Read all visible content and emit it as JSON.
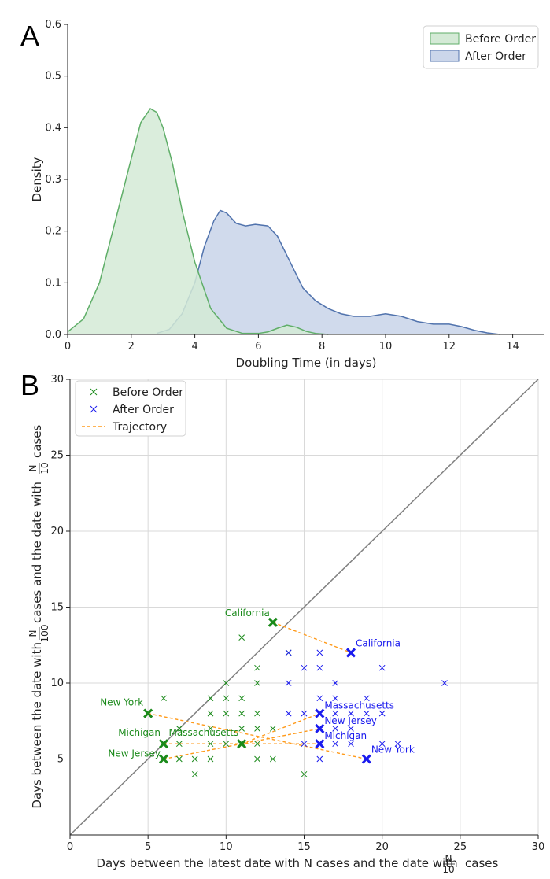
{
  "chart_data": [
    {
      "type": "area",
      "panel_label": "A",
      "title": "",
      "xlabel": "Doubling Time (in days)",
      "ylabel": "Density",
      "xlim": [
        0,
        15
      ],
      "ylim": [
        0,
        0.6
      ],
      "xticks": [
        "0",
        "2",
        "4",
        "6",
        "8",
        "10",
        "12",
        "14"
      ],
      "yticks": [
        "0.0",
        "0.1",
        "0.2",
        "0.3",
        "0.4",
        "0.5",
        "0.6"
      ],
      "legend": {
        "placement": "top-right",
        "entries": [
          "Before Order",
          "After Order"
        ]
      },
      "colors": {
        "before_fill": "#d4ead6",
        "before_line": "#5fae68",
        "after_fill": "#cbd6ea",
        "after_line": "#5173ad"
      },
      "series": [
        {
          "name": "Before Order",
          "x": [
            0,
            0.5,
            1,
            1.5,
            2,
            2.3,
            2.6,
            2.8,
            3.0,
            3.3,
            3.6,
            4.0,
            4.5,
            5.0,
            5.5,
            6.0,
            6.3,
            6.6,
            6.9,
            7.2,
            7.5,
            7.8,
            8.2
          ],
          "y": [
            0.005,
            0.03,
            0.1,
            0.22,
            0.34,
            0.41,
            0.437,
            0.43,
            0.4,
            0.33,
            0.24,
            0.14,
            0.05,
            0.012,
            0.002,
            0.002,
            0.005,
            0.012,
            0.018,
            0.014,
            0.006,
            0.002,
            0
          ]
        },
        {
          "name": "After Order",
          "x": [
            2.8,
            3.2,
            3.6,
            4.0,
            4.3,
            4.6,
            4.8,
            5.0,
            5.3,
            5.6,
            5.9,
            6.3,
            6.6,
            7.0,
            7.4,
            7.8,
            8.2,
            8.6,
            9.0,
            9.5,
            10.0,
            10.5,
            11.0,
            11.5,
            12.0,
            12.4,
            12.8,
            13.2,
            13.6
          ],
          "y": [
            0.002,
            0.01,
            0.04,
            0.1,
            0.17,
            0.22,
            0.24,
            0.235,
            0.215,
            0.21,
            0.213,
            0.21,
            0.19,
            0.14,
            0.09,
            0.065,
            0.05,
            0.04,
            0.035,
            0.035,
            0.04,
            0.035,
            0.025,
            0.02,
            0.02,
            0.015,
            0.008,
            0.003,
            0
          ]
        }
      ]
    },
    {
      "type": "scatter",
      "panel_label": "B",
      "title": "",
      "xlabel": "Days between the latest date with N cases and the date with",
      "xlabel_frac": {
        "num": "N",
        "den": "10"
      },
      "xlabel_tail": "cases",
      "ylabel": "Days between the date with",
      "ylabel_frac1": {
        "num": "N",
        "den": "100"
      },
      "ylabel_mid": "cases and the date with",
      "ylabel_frac2": {
        "num": "N",
        "den": "10"
      },
      "ylabel_tail": "cases",
      "xlim": [
        0,
        30
      ],
      "ylim": [
        0,
        30
      ],
      "xticks": [
        "0",
        "5",
        "10",
        "15",
        "20",
        "25",
        "30"
      ],
      "yticks": [
        "5",
        "10",
        "15",
        "20",
        "25",
        "30"
      ],
      "grid": true,
      "diagonal": true,
      "legend": {
        "placement": "top-left",
        "entries": [
          "Before Order",
          "After Order",
          "Trajectory"
        ]
      },
      "colors": {
        "before": "#1a8a1a",
        "after": "#1a1aee",
        "trajectory": "#ff9a1a",
        "diagonal": "#808080",
        "grid": "#d9d9d9"
      },
      "series": [
        {
          "name": "Before Order",
          "points": [
            [
              6,
              9
            ],
            [
              9,
              9
            ],
            [
              10,
              9
            ],
            [
              11,
              9
            ],
            [
              9,
              8
            ],
            [
              10,
              8
            ],
            [
              11,
              8
            ],
            [
              12,
              8
            ],
            [
              7,
              7
            ],
            [
              9,
              7
            ],
            [
              11,
              7
            ],
            [
              12,
              7
            ],
            [
              13,
              7
            ],
            [
              7,
              6
            ],
            [
              9,
              6
            ],
            [
              10,
              6
            ],
            [
              12,
              6
            ],
            [
              7,
              5
            ],
            [
              8,
              5
            ],
            [
              9,
              5
            ],
            [
              12,
              5
            ],
            [
              13,
              5
            ],
            [
              8,
              4
            ],
            [
              15,
              4
            ],
            [
              10,
              10
            ],
            [
              12,
              10
            ],
            [
              12,
              11
            ],
            [
              14,
              12
            ],
            [
              11,
              13
            ]
          ]
        },
        {
          "name": "After Order",
          "points": [
            [
              14,
              12
            ],
            [
              16,
              12
            ],
            [
              16,
              11
            ],
            [
              15,
              11
            ],
            [
              20,
              11
            ],
            [
              14,
              10
            ],
            [
              17,
              10
            ],
            [
              24,
              10
            ],
            [
              16,
              9
            ],
            [
              17,
              9
            ],
            [
              19,
              9
            ],
            [
              14,
              8
            ],
            [
              15,
              8
            ],
            [
              17,
              8
            ],
            [
              18,
              8
            ],
            [
              19,
              8
            ],
            [
              20,
              8
            ],
            [
              16,
              7
            ],
            [
              17,
              7
            ],
            [
              18,
              7
            ],
            [
              15,
              6
            ],
            [
              17,
              6
            ],
            [
              18,
              6
            ],
            [
              20,
              6
            ],
            [
              21,
              6
            ],
            [
              16,
              5
            ]
          ]
        }
      ],
      "trajectories": [
        {
          "name": "California",
          "before": [
            13,
            14
          ],
          "after": [
            18,
            12
          ]
        },
        {
          "name": "New York",
          "before": [
            5,
            8
          ],
          "after": [
            19,
            5
          ]
        },
        {
          "name": "Massachusetts",
          "before": [
            11,
            6
          ],
          "after": [
            16,
            8
          ]
        },
        {
          "name": "Michigan",
          "before": [
            6,
            6
          ],
          "after": [
            16,
            6
          ]
        },
        {
          "name": "New Jersey",
          "before": [
            6,
            5
          ],
          "after": [
            16,
            7
          ]
        }
      ]
    }
  ]
}
